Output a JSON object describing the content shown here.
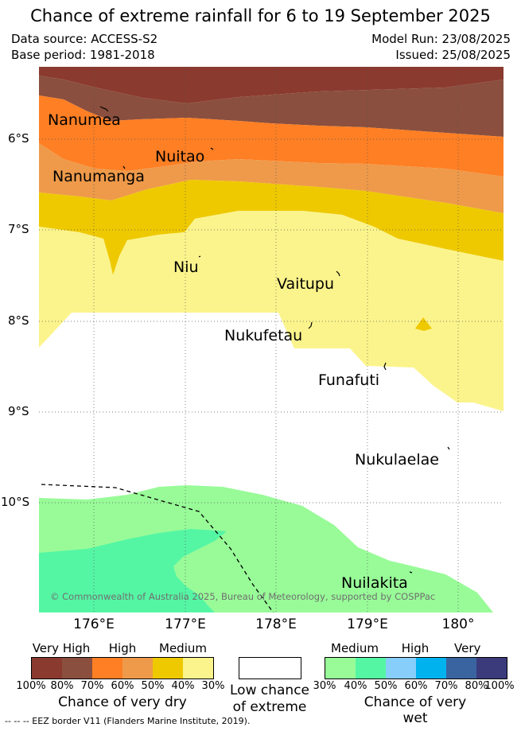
{
  "title": "Chance of extreme rainfall for 6 to 19 September 2025",
  "meta": {
    "data_source": "Data source: ACCESS-S2",
    "base_period": "Base period: 1981-2018",
    "model_run": "Model Run: 23/08/2025",
    "issued": "Issued: 25/08/2025"
  },
  "axes": {
    "lat_labels": [
      "6°S",
      "7°S",
      "8°S",
      "9°S",
      "10°S"
    ],
    "lon_labels": [
      "176°E",
      "177°E",
      "178°E",
      "179°E",
      "180°"
    ]
  },
  "places": {
    "nanumea": "Nanumea",
    "nuitao": "Nuitao",
    "nanumanga": "Nanumanga",
    "niu": "Niu",
    "vaitupu": "Vaitupu",
    "nukufetau": "Nukufetau",
    "funafuti": "Funafuti",
    "nukulaelae": "Nukulaelae",
    "nuilakita": "Nuilakita"
  },
  "copyright": "© Commonwealth of Australia 2025, Bureau of Meteorology, supported by COSPPac",
  "legend": {
    "dry": {
      "levels": [
        "Very High",
        "High",
        "Medium"
      ],
      "percents": [
        "100%",
        "80%",
        "70%",
        "60%",
        "50%",
        "40%",
        "30%"
      ],
      "caption": "Chance of very dry",
      "colors": [
        "#8b3a2f",
        "#8a4f3e",
        "#ff7f24",
        "#ee9a4a",
        "#eec900",
        "#fbf48c"
      ]
    },
    "low": {
      "caption_line1": "Low chance",
      "caption_line2": "of extreme"
    },
    "wet": {
      "levels": [
        "Medium",
        "High",
        "Very High"
      ],
      "percents": [
        "30%",
        "40%",
        "50%",
        "60%",
        "70%",
        "80%",
        "100%"
      ],
      "caption": "Chance of very wet",
      "colors": [
        "#98fb98",
        "#54f6a4",
        "#87cefa",
        "#00b2ee",
        "#3a64a0",
        "#3b3b7c"
      ]
    }
  },
  "eez_note": "-- -- -- EEZ border V11 (Flanders Marine Institute, 2019)."
}
